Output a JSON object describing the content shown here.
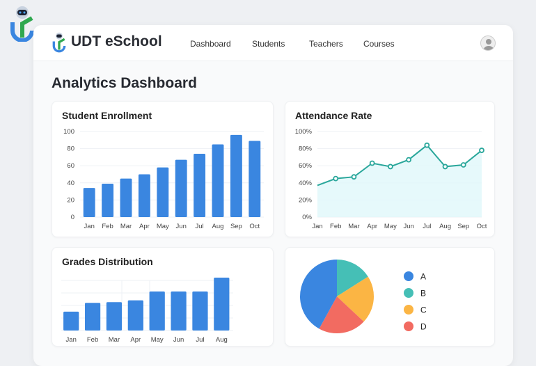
{
  "header": {
    "brand": "UDT eSchool",
    "nav": [
      "Dashboard",
      "Students",
      "Teachers",
      "Courses"
    ],
    "avatar_icon": "user-avatar-icon"
  },
  "page_title": "Analytics Dashboard",
  "colors": {
    "bar": "#3a86e0",
    "line": "#2aa79b",
    "fill": "#e0f7fa",
    "A": "#3a86e0",
    "B": "#45bfb6",
    "C": "#fbb544",
    "D": "#f26b61"
  },
  "chart_data": [
    {
      "type": "bar",
      "title": "Student Enrollment",
      "categories": [
        "Jan",
        "Feb",
        "Mar",
        "Apr",
        "May",
        "Jun",
        "Jul",
        "Aug",
        "Sep",
        "Oct"
      ],
      "values": [
        34,
        39,
        45,
        50,
        58,
        67,
        74,
        85,
        96,
        89
      ],
      "ylim": [
        0,
        100
      ],
      "yticks": [
        "0",
        "20",
        "40",
        "60",
        "80",
        "100"
      ],
      "grid": true
    },
    {
      "type": "area",
      "title": "Attendance Rate",
      "categories": [
        "Jan",
        "Feb",
        "Mar",
        "Apr",
        "May",
        "Jun",
        "Jul",
        "Aug",
        "Sep",
        "Oct"
      ],
      "values": [
        37,
        45,
        47,
        63,
        59,
        67,
        84,
        59,
        61,
        78
      ],
      "ylim": [
        0,
        100
      ],
      "yticks": [
        "0%",
        "20%",
        "40%",
        "60%",
        "80%",
        "100%"
      ],
      "grid": true
    },
    {
      "type": "bar",
      "title": "Grades Distribution",
      "categories": [
        "Jan",
        "Feb",
        "Mar",
        "Apr",
        "May",
        "Jun",
        "Jul",
        "Aug"
      ],
      "values": [
        1.5,
        2.2,
        2.25,
        2.4,
        3.1,
        3.1,
        3.1,
        4.2
      ],
      "ylim": [
        0,
        4.2
      ],
      "grid": true
    },
    {
      "type": "pie",
      "labels": [
        "A",
        "B",
        "C",
        "D"
      ],
      "values": [
        42,
        16,
        21,
        21
      ],
      "legend": "right"
    }
  ]
}
